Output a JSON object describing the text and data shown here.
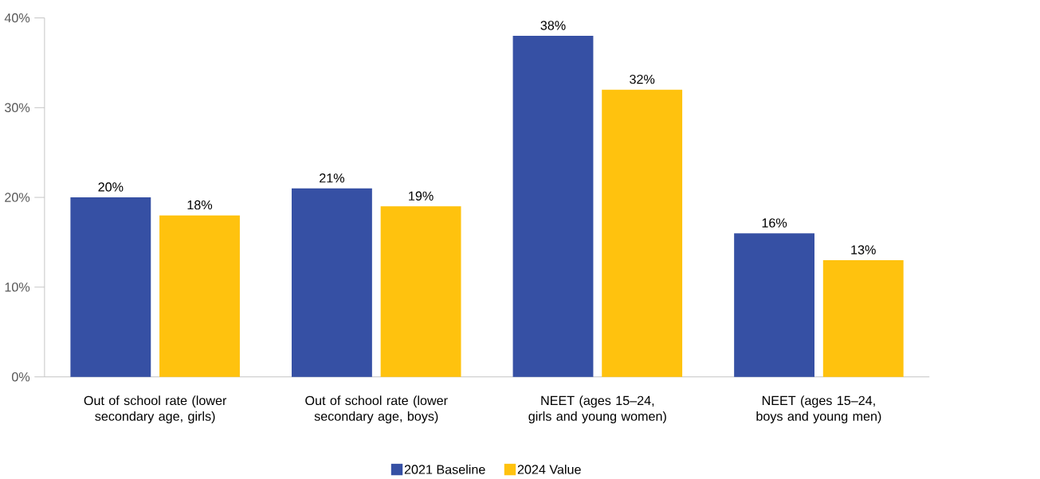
{
  "chart_data": {
    "type": "bar",
    "categories": [
      "Out of school rate (lower secondary age, girls)",
      "Out of school rate (lower secondary age, boys)",
      "NEET (ages 15–24, girls and young women)",
      "NEET (ages 15–24, boys and young men)"
    ],
    "series": [
      {
        "name": "2021 Baseline",
        "color": "#3650a4",
        "values": [
          20,
          21,
          38,
          16
        ],
        "value_labels": [
          "20%",
          "21%",
          "38%",
          "16%"
        ]
      },
      {
        "name": "2024 Value",
        "color": "#ffc20e",
        "values": [
          18,
          19,
          32,
          13
        ],
        "value_labels": [
          "18%",
          "19%",
          "32%",
          "13%"
        ]
      }
    ],
    "ylim": [
      0,
      40
    ],
    "yticks": [
      {
        "value": 0,
        "label": "0%"
      },
      {
        "value": 10,
        "label": "10%"
      },
      {
        "value": 20,
        "label": "20%"
      },
      {
        "value": 30,
        "label": "30%"
      },
      {
        "value": 40,
        "label": "40%"
      }
    ],
    "legend": "bottom"
  }
}
